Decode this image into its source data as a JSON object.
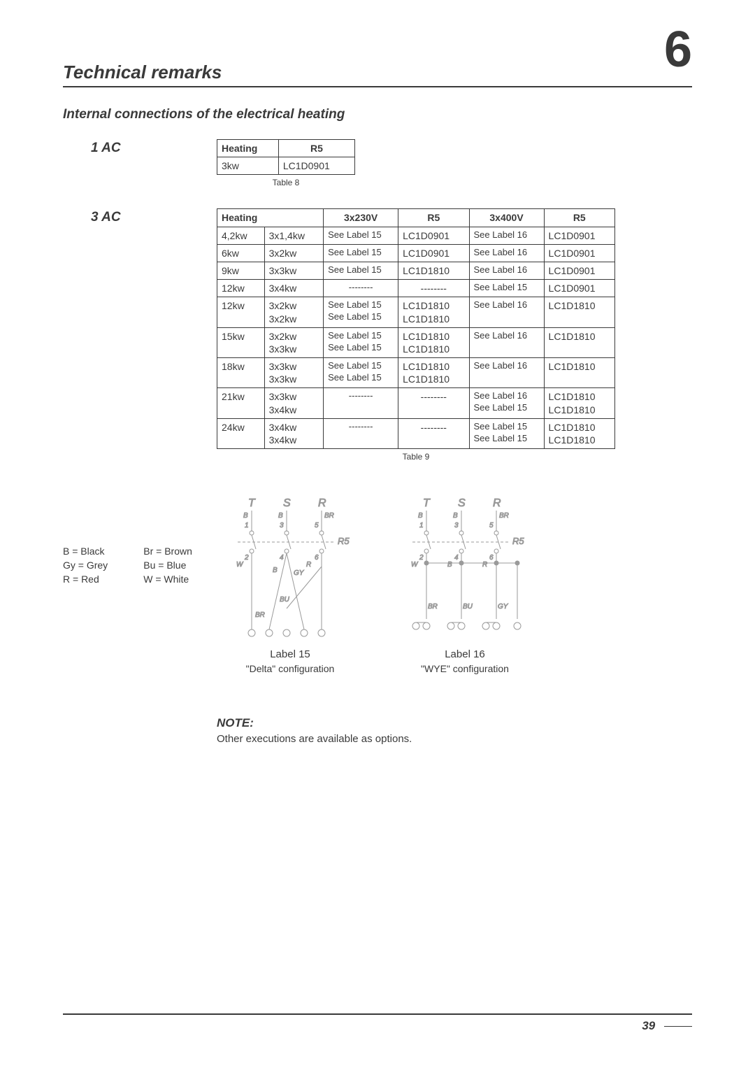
{
  "chapter_number": "6",
  "section_title": "Technical remarks",
  "subsection_title": "Internal connections of the electrical heating",
  "ac1": {
    "label": "1 AC",
    "headers": [
      "Heating",
      "R5"
    ],
    "rows": [
      [
        "3kw",
        "LC1D0901"
      ]
    ],
    "caption": "Table 8"
  },
  "ac3": {
    "label": "3 AC",
    "headers": [
      "Heating",
      "",
      "3x230V",
      "R5",
      "3x400V",
      "R5"
    ],
    "rows": [
      [
        "4,2kw",
        "3x1,4kw",
        "See Label 15",
        "LC1D0901",
        "See Label 16",
        "LC1D0901"
      ],
      [
        "6kw",
        "3x2kw",
        "See Label 15",
        "LC1D0901",
        "See Label 16",
        "LC1D0901"
      ],
      [
        "9kw",
        "3x3kw",
        "See Label 15",
        "LC1D1810",
        "See Label 16",
        "LC1D0901"
      ],
      [
        "12kw",
        "3x4kw",
        "--------",
        "--------",
        "See Label 15",
        "LC1D0901"
      ],
      [
        "12kw",
        "3x2kw\n3x2kw",
        "See Label 15\nSee Label 15",
        "LC1D1810\nLC1D1810",
        "See Label 16",
        "LC1D1810"
      ],
      [
        "15kw",
        "3x2kw\n3x3kw",
        "See Label 15\nSee Label 15",
        "LC1D1810\nLC1D1810",
        "See Label 16",
        "LC1D1810"
      ],
      [
        "18kw",
        "3x3kw\n3x3kw",
        "See Label 15\nSee Label 15",
        "LC1D1810\nLC1D1810",
        "See Label 16",
        "LC1D1810"
      ],
      [
        "21kw",
        "3x3kw\n3x4kw",
        "--------",
        "--------",
        "See Label 16\nSee Label 15",
        "LC1D1810\nLC1D1810"
      ],
      [
        "24kw",
        "3x4kw\n3x4kw",
        "--------",
        "--------",
        "See Label 15\nSee Label 15",
        "LC1D1810\nLC1D1810"
      ]
    ],
    "caption": "Table 9"
  },
  "legend": {
    "items": [
      [
        "B = Black",
        "Br = Brown"
      ],
      [
        "Gy = Grey",
        "Bu = Blue"
      ],
      [
        "R = Red",
        "W = White"
      ]
    ]
  },
  "diagrams": {
    "left": {
      "top_letters": [
        "T",
        "S",
        "R"
      ],
      "pin_labels": [
        "B",
        "B",
        "BR"
      ],
      "pin_nums_top": [
        "1",
        "3",
        "5"
      ],
      "pin_nums_bot": [
        "2",
        "4",
        "6"
      ],
      "r_label": "R5",
      "wire_labels": [
        "W",
        "B",
        "GY",
        "R",
        "BU",
        "BR"
      ],
      "caption": "Label 15",
      "sub": "\"Delta\" configuration"
    },
    "right": {
      "top_letters": [
        "T",
        "S",
        "R"
      ],
      "pin_labels": [
        "B",
        "B",
        "BR"
      ],
      "pin_nums_top": [
        "1",
        "3",
        "5"
      ],
      "pin_nums_bot": [
        "2",
        "4",
        "6"
      ],
      "r_label": "R5",
      "wire_labels": [
        "W",
        "B",
        "R",
        "BR",
        "BU",
        "GY"
      ],
      "caption": "Label 16",
      "sub": "\"WYE\" configuration"
    }
  },
  "note": {
    "title": "NOTE:",
    "text": "Other executions are available as options."
  },
  "page_number": "39",
  "colors": {
    "text": "#3a3a3a",
    "diagram_stroke": "#9a9a9a",
    "background": "#ffffff"
  }
}
